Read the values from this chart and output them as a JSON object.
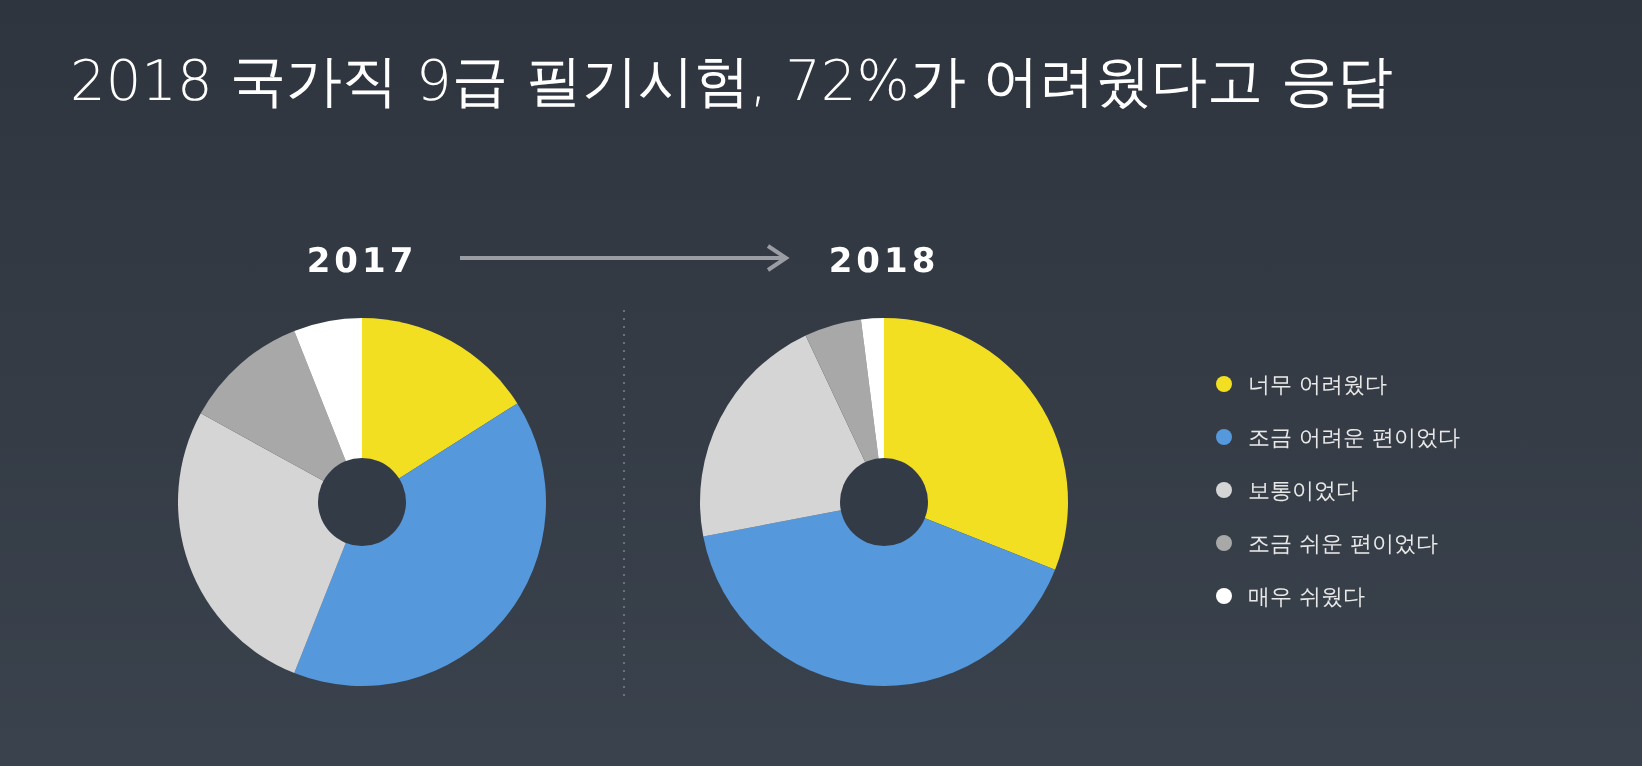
{
  "chart_data": [
    {
      "type": "donut",
      "title": "2018 국가직 9급 필기시험, 72%가 어려웠다고 응답",
      "subtitle": "2017",
      "categories": [
        null,
        null,
        null,
        null,
        null
      ],
      "values": [
        16,
        40,
        27,
        11,
        6
      ],
      "colors": [
        "#f3df22",
        "#5599dc",
        "#d5d5d5",
        "#a8a8a8",
        "#ffffff"
      ],
      "legend": false
    },
    {
      "type": "donut",
      "title": "2018",
      "categories": [
        "너무 어려웠다",
        "조금 어려운 편이었다",
        "보통이었다",
        "조금 쉬운 편이었다",
        "매우 쉬웠다"
      ],
      "values": [
        31,
        41,
        21,
        5,
        2
      ],
      "colors": [
        "#f3df22",
        "#5599dc",
        "#d5d5d5",
        "#a8a8a8",
        "#ffffff"
      ],
      "legend": "right"
    }
  ]
}
